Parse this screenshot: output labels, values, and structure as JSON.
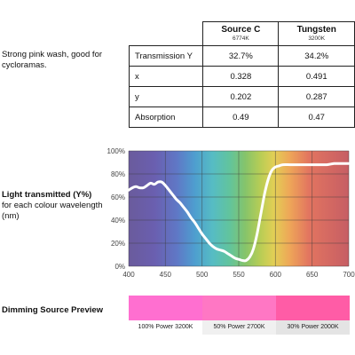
{
  "description": "Strong pink wash, good for cycloramas.",
  "table": {
    "sources": [
      {
        "name": "Source C",
        "kelvin": "6774K"
      },
      {
        "name": "Tungsten",
        "kelvin": "3200K"
      }
    ],
    "rows": [
      {
        "label": "Transmission Y",
        "values": [
          "32.7%",
          "34.2%"
        ]
      },
      {
        "label": "x",
        "values": [
          "0.328",
          "0.491"
        ]
      },
      {
        "label": "y",
        "values": [
          "0.202",
          "0.287"
        ]
      },
      {
        "label": "Absorption",
        "values": [
          "0.49",
          "0.47"
        ]
      }
    ]
  },
  "chart_label": {
    "title": "Light transmitted (Y%)",
    "subtitle": "for each colour wavelength (nm)"
  },
  "chart_data": {
    "type": "line",
    "title": "",
    "xlabel": "wavelength (nm)",
    "ylabel": "Light transmitted (Y%)",
    "xlim": [
      400,
      700
    ],
    "ylim": [
      0,
      100
    ],
    "x_ticks": [
      400,
      450,
      500,
      550,
      600,
      650,
      700
    ],
    "y_ticks": [
      "0%",
      "20%",
      "40%",
      "60%",
      "80%",
      "100%"
    ],
    "grid": true,
    "background": "visible spectrum",
    "line_color": "#ffffff",
    "series": [
      {
        "x": [
          400,
          405,
          410,
          415,
          420,
          425,
          430,
          435,
          440,
          445,
          450,
          455,
          460,
          465,
          470,
          475,
          480,
          485,
          490,
          495,
          500,
          505,
          510,
          515,
          520,
          525,
          530,
          535,
          540,
          545,
          550,
          555,
          560,
          565,
          570,
          575,
          580,
          585,
          590,
          595,
          600,
          605,
          610,
          620,
          630,
          640,
          650,
          660,
          670,
          680,
          690,
          700
        ],
        "y": [
          66,
          68,
          69,
          68,
          68,
          70,
          72,
          71,
          73,
          73,
          70,
          66,
          62,
          58,
          55,
          51,
          47,
          42,
          38,
          33,
          28,
          24,
          20,
          17,
          15,
          14,
          13,
          11,
          9,
          7,
          6,
          5,
          5,
          8,
          15,
          28,
          45,
          62,
          75,
          83,
          86,
          87,
          88,
          88,
          88,
          88,
          88,
          88,
          88,
          89,
          89,
          89
        ]
      }
    ]
  },
  "dimming": {
    "title": "Dimming Source Preview",
    "items": [
      {
        "label": "100% Power 3200K",
        "color": "#ff6fd0",
        "caption_bg": "#ffffff"
      },
      {
        "label": "50% Power 2700K",
        "color": "#ff77c4",
        "caption_bg": "#f0f0f0"
      },
      {
        "label": "30% Power 2000K",
        "color": "#ff5ca6",
        "caption_bg": "#e4e4e4"
      }
    ]
  }
}
